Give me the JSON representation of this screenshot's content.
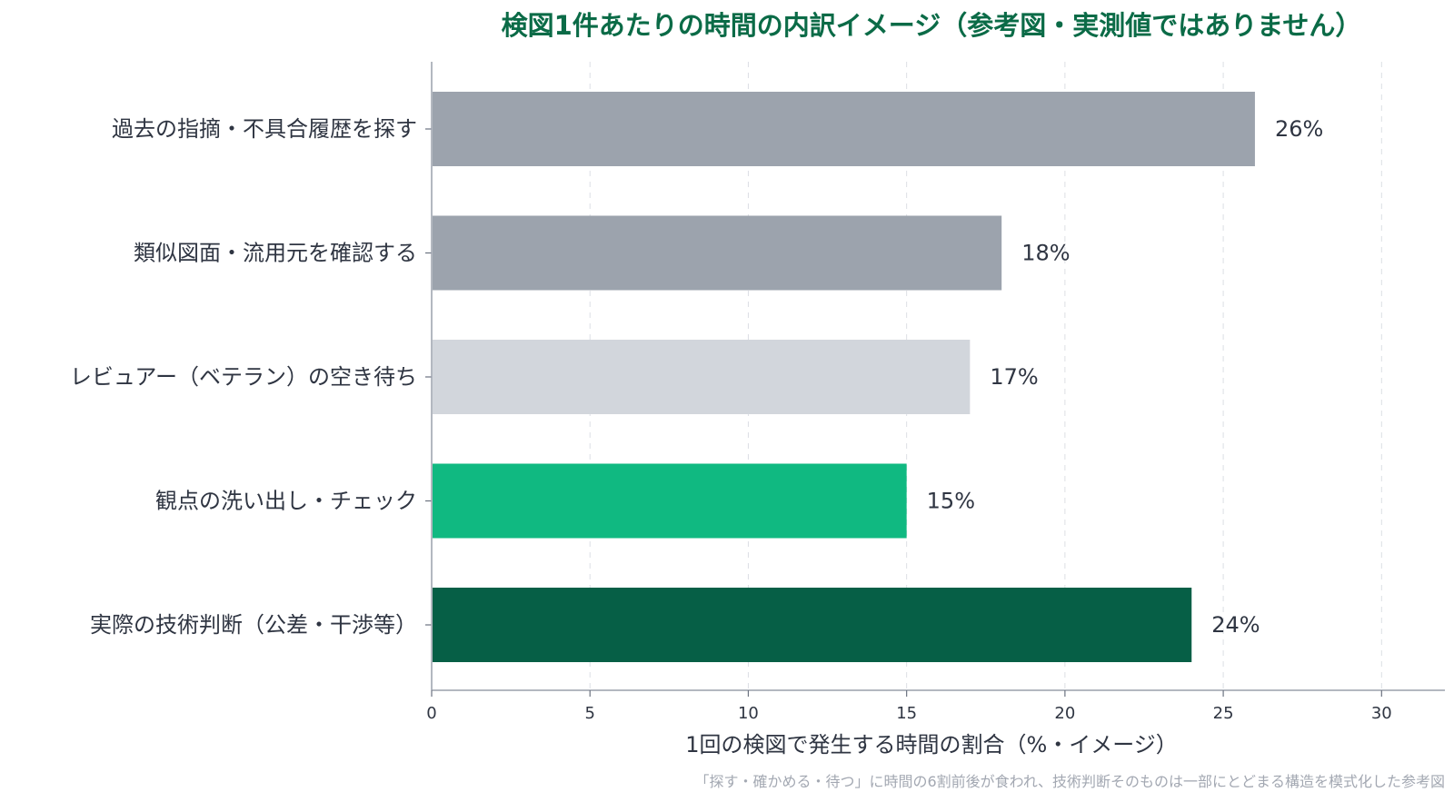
{
  "chart_data": {
    "type": "bar",
    "orientation": "horizontal",
    "title": "検図1件あたりの時間の内訳イメージ（参考図・実測値ではありません）",
    "xlabel": "1回の検図で発生する時間の割合（%・イメージ）",
    "ylabel": "",
    "xlim": [
      0,
      32
    ],
    "xticks": [
      0,
      5,
      10,
      15,
      20,
      25,
      30
    ],
    "grid": "vertical dashed",
    "categories": [
      "過去の指摘・不具合履歴を探す",
      "類似図面・流用元を確認する",
      "レビュアー（ベテラン）の空き待ち",
      "観点の洗い出し・チェック",
      "実際の技術判断（公差・干渉等）"
    ],
    "values": [
      26,
      18,
      17,
      15,
      24
    ],
    "value_labels": [
      "26%",
      "18%",
      "17%",
      "15%",
      "24%"
    ],
    "bar_colors": [
      "#9ca3ad",
      "#9ca3ad",
      "#d2d6dc",
      "#10b981",
      "#065f46"
    ],
    "footnote": "「探す・確かめる・待つ」に時間の6割前後が食われ、技術判断そのものは一部にとどまる構造を模式化した参考図"
  },
  "colors": {
    "title": "#0b6b47",
    "text": "#2f3542",
    "footnote": "#a3a8b2",
    "grid": "#dcdfe4",
    "axis": "#9aa0ac"
  }
}
